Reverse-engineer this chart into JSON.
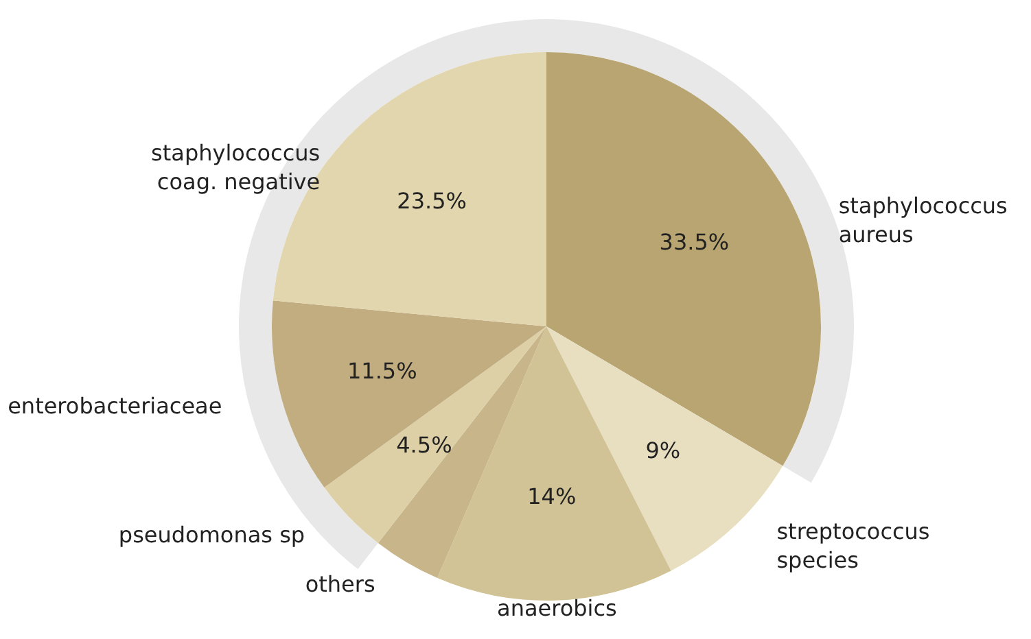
{
  "chart_data": {
    "type": "pie",
    "categories": [
      "staphylococcus aureus",
      "streptococcus species",
      "anaerobics",
      "others",
      "pseudomonas sp",
      "enterobacteriaceae",
      "staphylococcus coag. negative"
    ],
    "values": [
      33.5,
      9,
      14,
      4,
      4.5,
      11.5,
      23.5
    ],
    "colors": [
      "#b8a571",
      "#e8dfc0",
      "#d1c396",
      "#c8b68a",
      "#ddd0a6",
      "#c2ad80",
      "#e2d6ae"
    ],
    "value_labels": [
      "33.5%",
      "9%",
      "14%",
      null,
      "4.5%",
      "11.5%",
      "23.5%"
    ]
  }
}
